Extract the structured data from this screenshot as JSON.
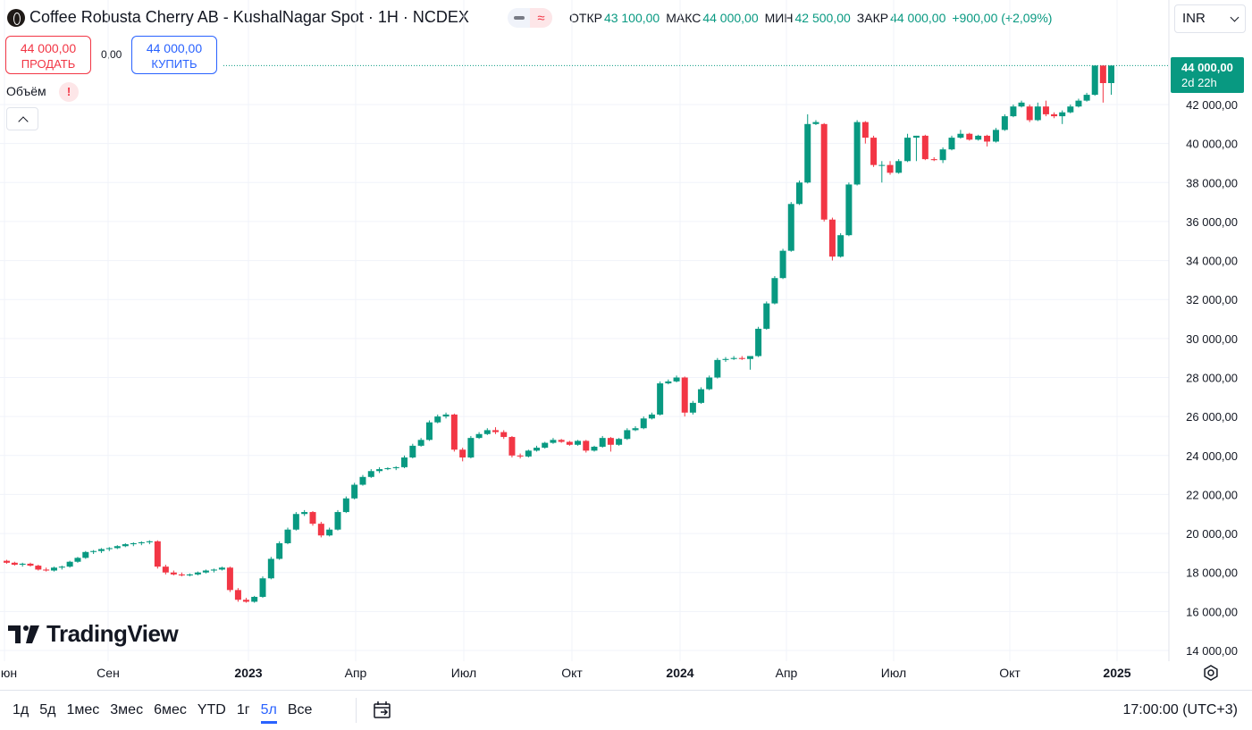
{
  "header": {
    "symbol_title": "Coffee Robusta Cherry AB - KushalNagar Spot · 1H · NCDEX",
    "ohlc": [
      {
        "key": "ОТКР",
        "value": "43 100,00"
      },
      {
        "key": "МАКС",
        "value": "44 000,00"
      },
      {
        "key": "МИН",
        "value": "42 500,00"
      },
      {
        "key": "ЗАКР",
        "value": "44 000,00"
      }
    ],
    "change": "+900,00 (+2,09%)",
    "currency": "INR",
    "pill_icon_left": "minus-icon",
    "pill_icon_right": "wave-approx-icon"
  },
  "trade": {
    "sell_price": "44 000,00",
    "sell_label": "ПРОДАТЬ",
    "spread": "0,00",
    "buy_price": "44 000,00",
    "buy_label": "КУПИТЬ"
  },
  "volume": {
    "label": "Объём",
    "warning": "!"
  },
  "last_price": {
    "value": "44 000,00",
    "countdown": "2d 22h"
  },
  "brand": {
    "name": "TradingView"
  },
  "bottom": {
    "periods": [
      "1д",
      "5д",
      "1мес",
      "3мес",
      "6мес",
      "YTD",
      "1г",
      "5л",
      "Все"
    ],
    "active_period": "5л",
    "clock": "17:00:00 (UTC+3)"
  },
  "colors": {
    "up": "#089981",
    "down": "#f23645",
    "buy": "#2962ff",
    "text": "#131722",
    "grid": "#f0f3fa"
  },
  "chart_data": {
    "type": "candlestick",
    "price_axis": {
      "min": 14000,
      "max": 44000,
      "ticks": [
        14000,
        16000,
        18000,
        20000,
        22000,
        24000,
        26000,
        28000,
        30000,
        32000,
        34000,
        36000,
        38000,
        40000,
        42000
      ],
      "tick_labels": [
        "14 000,00",
        "16 000,00",
        "18 000,00",
        "20 000,00",
        "22 000,00",
        "24 000,00",
        "26 000,00",
        "28 000,00",
        "30 000,00",
        "32 000,00",
        "34 000,00",
        "36 000,00",
        "38 000,00",
        "40 000,00",
        "42 000,00"
      ]
    },
    "time_axis": {
      "labels": [
        "Июн",
        "Сен",
        "2023",
        "Апр",
        "Июл",
        "Окт",
        "2024",
        "Апр",
        "Июл",
        "Окт",
        "2025"
      ],
      "bold": [
        "2023",
        "2024",
        "2025"
      ],
      "dates": [
        "2022-06-01",
        "2022-09-01",
        "2023-01-01",
        "2023-04-01",
        "2023-07-01",
        "2023-10-01",
        "2024-01-01",
        "2024-04-01",
        "2024-07-01",
        "2024-10-01",
        "2025-01-01"
      ]
    },
    "candles": [
      {
        "t": "2022-06-03",
        "o": 18600,
        "h": 18650,
        "l": 18450,
        "c": 18500
      },
      {
        "t": "2022-06-10",
        "o": 18500,
        "h": 18550,
        "l": 18350,
        "c": 18400
      },
      {
        "t": "2022-06-17",
        "o": 18400,
        "h": 18500,
        "l": 18300,
        "c": 18450
      },
      {
        "t": "2022-06-24",
        "o": 18450,
        "h": 18500,
        "l": 18300,
        "c": 18350
      },
      {
        "t": "2022-07-01",
        "o": 18350,
        "h": 18400,
        "l": 18100,
        "c": 18150
      },
      {
        "t": "2022-07-08",
        "o": 18150,
        "h": 18250,
        "l": 18050,
        "c": 18100
      },
      {
        "t": "2022-07-15",
        "o": 18100,
        "h": 18300,
        "l": 18050,
        "c": 18250
      },
      {
        "t": "2022-07-22",
        "o": 18250,
        "h": 18350,
        "l": 18150,
        "c": 18300
      },
      {
        "t": "2022-07-29",
        "o": 18300,
        "h": 18600,
        "l": 18250,
        "c": 18550
      },
      {
        "t": "2022-08-05",
        "o": 18550,
        "h": 18800,
        "l": 18500,
        "c": 18750
      },
      {
        "t": "2022-08-12",
        "o": 18750,
        "h": 19100,
        "l": 18700,
        "c": 19050
      },
      {
        "t": "2022-08-19",
        "o": 19050,
        "h": 19150,
        "l": 18950,
        "c": 19100
      },
      {
        "t": "2022-08-26",
        "o": 19100,
        "h": 19250,
        "l": 19000,
        "c": 19200
      },
      {
        "t": "2022-09-02",
        "o": 19200,
        "h": 19300,
        "l": 19100,
        "c": 19250
      },
      {
        "t": "2022-09-09",
        "o": 19250,
        "h": 19400,
        "l": 19200,
        "c": 19350
      },
      {
        "t": "2022-09-16",
        "o": 19350,
        "h": 19500,
        "l": 19300,
        "c": 19450
      },
      {
        "t": "2022-09-23",
        "o": 19450,
        "h": 19550,
        "l": 19350,
        "c": 19500
      },
      {
        "t": "2022-09-30",
        "o": 19500,
        "h": 19600,
        "l": 19400,
        "c": 19550
      },
      {
        "t": "2022-10-07",
        "o": 19550,
        "h": 19650,
        "l": 19450,
        "c": 19600
      },
      {
        "t": "2022-10-14",
        "o": 19600,
        "h": 19650,
        "l": 18200,
        "c": 18300
      },
      {
        "t": "2022-10-21",
        "o": 18300,
        "h": 18400,
        "l": 17900,
        "c": 18000
      },
      {
        "t": "2022-10-28",
        "o": 18000,
        "h": 18100,
        "l": 17850,
        "c": 17900
      },
      {
        "t": "2022-11-04",
        "o": 17900,
        "h": 18000,
        "l": 17800,
        "c": 17850
      },
      {
        "t": "2022-11-11",
        "o": 17850,
        "h": 17950,
        "l": 17800,
        "c": 17900
      },
      {
        "t": "2022-11-18",
        "o": 17900,
        "h": 18050,
        "l": 17850,
        "c": 18000
      },
      {
        "t": "2022-11-25",
        "o": 18000,
        "h": 18150,
        "l": 17950,
        "c": 18100
      },
      {
        "t": "2022-12-02",
        "o": 18100,
        "h": 18200,
        "l": 18000,
        "c": 18150
      },
      {
        "t": "2022-12-09",
        "o": 18150,
        "h": 18300,
        "l": 18100,
        "c": 18250
      },
      {
        "t": "2022-12-16",
        "o": 18250,
        "h": 18300,
        "l": 17000,
        "c": 17100
      },
      {
        "t": "2022-12-23",
        "o": 17100,
        "h": 17200,
        "l": 16500,
        "c": 16600
      },
      {
        "t": "2022-12-30",
        "o": 16600,
        "h": 16700,
        "l": 16450,
        "c": 16500
      },
      {
        "t": "2023-01-06",
        "o": 16500,
        "h": 16800,
        "l": 16450,
        "c": 16750
      },
      {
        "t": "2023-01-13",
        "o": 16750,
        "h": 17800,
        "l": 16700,
        "c": 17700
      },
      {
        "t": "2023-01-20",
        "o": 17700,
        "h": 18800,
        "l": 17650,
        "c": 18700
      },
      {
        "t": "2023-01-27",
        "o": 18700,
        "h": 19600,
        "l": 18650,
        "c": 19500
      },
      {
        "t": "2023-02-03",
        "o": 19500,
        "h": 20300,
        "l": 19450,
        "c": 20200
      },
      {
        "t": "2023-02-10",
        "o": 20200,
        "h": 21100,
        "l": 20150,
        "c": 21000
      },
      {
        "t": "2023-02-17",
        "o": 21000,
        "h": 21200,
        "l": 20900,
        "c": 21100
      },
      {
        "t": "2023-02-24",
        "o": 21100,
        "h": 21150,
        "l": 20400,
        "c": 20500
      },
      {
        "t": "2023-03-03",
        "o": 20500,
        "h": 20600,
        "l": 19800,
        "c": 19900
      },
      {
        "t": "2023-03-10",
        "o": 19900,
        "h": 20300,
        "l": 19850,
        "c": 20200
      },
      {
        "t": "2023-03-17",
        "o": 20200,
        "h": 21200,
        "l": 20150,
        "c": 21100
      },
      {
        "t": "2023-03-24",
        "o": 21100,
        "h": 21900,
        "l": 21050,
        "c": 21800
      },
      {
        "t": "2023-03-31",
        "o": 21800,
        "h": 22600,
        "l": 21750,
        "c": 22500
      },
      {
        "t": "2023-04-07",
        "o": 22500,
        "h": 23000,
        "l": 22450,
        "c": 22900
      },
      {
        "t": "2023-04-14",
        "o": 22900,
        "h": 23300,
        "l": 22850,
        "c": 23200
      },
      {
        "t": "2023-04-21",
        "o": 23200,
        "h": 23400,
        "l": 23100,
        "c": 23300
      },
      {
        "t": "2023-04-28",
        "o": 23300,
        "h": 23400,
        "l": 23250,
        "c": 23350
      },
      {
        "t": "2023-05-05",
        "o": 23350,
        "h": 23450,
        "l": 23250,
        "c": 23400
      },
      {
        "t": "2023-05-12",
        "o": 23400,
        "h": 24000,
        "l": 23350,
        "c": 23900
      },
      {
        "t": "2023-05-19",
        "o": 23900,
        "h": 24600,
        "l": 23850,
        "c": 24500
      },
      {
        "t": "2023-05-26",
        "o": 24500,
        "h": 24900,
        "l": 24450,
        "c": 24800
      },
      {
        "t": "2023-06-02",
        "o": 24800,
        "h": 25800,
        "l": 24750,
        "c": 25700
      },
      {
        "t": "2023-06-09",
        "o": 25700,
        "h": 26100,
        "l": 25650,
        "c": 26000
      },
      {
        "t": "2023-06-16",
        "o": 26000,
        "h": 26200,
        "l": 25900,
        "c": 26100
      },
      {
        "t": "2023-06-23",
        "o": 26100,
        "h": 26150,
        "l": 24200,
        "c": 24300
      },
      {
        "t": "2023-06-30",
        "o": 24300,
        "h": 24400,
        "l": 23700,
        "c": 23900
      },
      {
        "t": "2023-07-07",
        "o": 23900,
        "h": 25000,
        "l": 23850,
        "c": 24900
      },
      {
        "t": "2023-07-14",
        "o": 24900,
        "h": 25200,
        "l": 24850,
        "c": 25100
      },
      {
        "t": "2023-07-21",
        "o": 25100,
        "h": 25400,
        "l": 25050,
        "c": 25300
      },
      {
        "t": "2023-07-28",
        "o": 25300,
        "h": 25450,
        "l": 25100,
        "c": 25200
      },
      {
        "t": "2023-08-04",
        "o": 25200,
        "h": 25300,
        "l": 24850,
        "c": 24950
      },
      {
        "t": "2023-08-11",
        "o": 24950,
        "h": 25000,
        "l": 23900,
        "c": 24000
      },
      {
        "t": "2023-08-18",
        "o": 24000,
        "h": 24100,
        "l": 23850,
        "c": 23950
      },
      {
        "t": "2023-08-25",
        "o": 23950,
        "h": 24300,
        "l": 23900,
        "c": 24250
      },
      {
        "t": "2023-09-01",
        "o": 24250,
        "h": 24500,
        "l": 24200,
        "c": 24400
      },
      {
        "t": "2023-09-08",
        "o": 24400,
        "h": 24700,
        "l": 24350,
        "c": 24650
      },
      {
        "t": "2023-09-15",
        "o": 24650,
        "h": 24900,
        "l": 24600,
        "c": 24800
      },
      {
        "t": "2023-09-22",
        "o": 24800,
        "h": 24850,
        "l": 24650,
        "c": 24700
      },
      {
        "t": "2023-09-29",
        "o": 24700,
        "h": 24750,
        "l": 24500,
        "c": 24550
      },
      {
        "t": "2023-10-06",
        "o": 24550,
        "h": 24800,
        "l": 24500,
        "c": 24750
      },
      {
        "t": "2023-10-13",
        "o": 24750,
        "h": 24800,
        "l": 24150,
        "c": 24250
      },
      {
        "t": "2023-10-20",
        "o": 24250,
        "h": 24500,
        "l": 24200,
        "c": 24450
      },
      {
        "t": "2023-10-27",
        "o": 24450,
        "h": 25000,
        "l": 24400,
        "c": 24900
      },
      {
        "t": "2023-11-03",
        "o": 24900,
        "h": 24950,
        "l": 24200,
        "c": 24550
      },
      {
        "t": "2023-11-10",
        "o": 24550,
        "h": 24900,
        "l": 24500,
        "c": 24850
      },
      {
        "t": "2023-11-17",
        "o": 24850,
        "h": 25400,
        "l": 24800,
        "c": 25300
      },
      {
        "t": "2023-11-24",
        "o": 25300,
        "h": 25500,
        "l": 25250,
        "c": 25400
      },
      {
        "t": "2023-12-01",
        "o": 25400,
        "h": 26000,
        "l": 25350,
        "c": 25900
      },
      {
        "t": "2023-12-08",
        "o": 25900,
        "h": 26200,
        "l": 25850,
        "c": 26100
      },
      {
        "t": "2023-12-15",
        "o": 26100,
        "h": 27800,
        "l": 26050,
        "c": 27700
      },
      {
        "t": "2023-12-22",
        "o": 27700,
        "h": 27900,
        "l": 27650,
        "c": 27800
      },
      {
        "t": "2023-12-29",
        "o": 27800,
        "h": 28100,
        "l": 27750,
        "c": 28000
      },
      {
        "t": "2024-01-05",
        "o": 28000,
        "h": 28050,
        "l": 26000,
        "c": 26200
      },
      {
        "t": "2024-01-12",
        "o": 26200,
        "h": 26800,
        "l": 26100,
        "c": 26700
      },
      {
        "t": "2024-01-19",
        "o": 26700,
        "h": 27500,
        "l": 26650,
        "c": 27400
      },
      {
        "t": "2024-01-26",
        "o": 27400,
        "h": 28100,
        "l": 27350,
        "c": 28000
      },
      {
        "t": "2024-02-02",
        "o": 28000,
        "h": 29000,
        "l": 27950,
        "c": 28900
      },
      {
        "t": "2024-02-09",
        "o": 28900,
        "h": 29050,
        "l": 28800,
        "c": 28950
      },
      {
        "t": "2024-02-16",
        "o": 28950,
        "h": 29100,
        "l": 28900,
        "c": 29000
      },
      {
        "t": "2024-02-23",
        "o": 29000,
        "h": 29100,
        "l": 28900,
        "c": 28950
      },
      {
        "t": "2024-03-01",
        "o": 28950,
        "h": 29050,
        "l": 28400,
        "c": 29100
      },
      {
        "t": "2024-03-08",
        "o": 29100,
        "h": 30600,
        "l": 29050,
        "c": 30500
      },
      {
        "t": "2024-03-15",
        "o": 30500,
        "h": 31900,
        "l": 30450,
        "c": 31800
      },
      {
        "t": "2024-03-22",
        "o": 31800,
        "h": 33200,
        "l": 31750,
        "c": 33100
      },
      {
        "t": "2024-03-29",
        "o": 33100,
        "h": 34600,
        "l": 33050,
        "c": 34500
      },
      {
        "t": "2024-04-05",
        "o": 34500,
        "h": 37000,
        "l": 34450,
        "c": 36900
      },
      {
        "t": "2024-04-12",
        "o": 36900,
        "h": 38100,
        "l": 36850,
        "c": 38000
      },
      {
        "t": "2024-04-19",
        "o": 38000,
        "h": 41500,
        "l": 37950,
        "c": 41000
      },
      {
        "t": "2024-04-26",
        "o": 41000,
        "h": 41200,
        "l": 40950,
        "c": 41100
      },
      {
        "t": "2024-05-03",
        "o": 41000,
        "h": 41050,
        "l": 36000,
        "c": 36100
      },
      {
        "t": "2024-05-10",
        "o": 36100,
        "h": 36200,
        "l": 34000,
        "c": 34200
      },
      {
        "t": "2024-05-17",
        "o": 34200,
        "h": 35400,
        "l": 34150,
        "c": 35300
      },
      {
        "t": "2024-05-24",
        "o": 35300,
        "h": 38000,
        "l": 35250,
        "c": 37900
      },
      {
        "t": "2024-05-31",
        "o": 37900,
        "h": 41200,
        "l": 37850,
        "c": 41100
      },
      {
        "t": "2024-06-07",
        "o": 41100,
        "h": 41150,
        "l": 40000,
        "c": 40300
      },
      {
        "t": "2024-06-14",
        "o": 40300,
        "h": 40400,
        "l": 38800,
        "c": 38900
      },
      {
        "t": "2024-06-21",
        "o": 38900,
        "h": 39100,
        "l": 38000,
        "c": 38900
      },
      {
        "t": "2024-06-28",
        "o": 38900,
        "h": 39100,
        "l": 38400,
        "c": 38500
      },
      {
        "t": "2024-07-05",
        "o": 38500,
        "h": 39200,
        "l": 38450,
        "c": 39100
      },
      {
        "t": "2024-07-12",
        "o": 39100,
        "h": 40500,
        "l": 39050,
        "c": 40300
      },
      {
        "t": "2024-07-19",
        "o": 40300,
        "h": 40400,
        "l": 39100,
        "c": 40400
      },
      {
        "t": "2024-07-26",
        "o": 40400,
        "h": 40450,
        "l": 39150,
        "c": 39200
      },
      {
        "t": "2024-08-02",
        "o": 39200,
        "h": 39300,
        "l": 39100,
        "c": 39150
      },
      {
        "t": "2024-08-09",
        "o": 39150,
        "h": 39800,
        "l": 39000,
        "c": 39700
      },
      {
        "t": "2024-08-16",
        "o": 39700,
        "h": 40400,
        "l": 39650,
        "c": 40300
      },
      {
        "t": "2024-08-23",
        "o": 40300,
        "h": 40700,
        "l": 40250,
        "c": 40500
      },
      {
        "t": "2024-08-30",
        "o": 40500,
        "h": 40550,
        "l": 40150,
        "c": 40200
      },
      {
        "t": "2024-09-06",
        "o": 40200,
        "h": 40450,
        "l": 40150,
        "c": 40400
      },
      {
        "t": "2024-09-13",
        "o": 40400,
        "h": 40450,
        "l": 39850,
        "c": 40100
      },
      {
        "t": "2024-09-20",
        "o": 40100,
        "h": 40800,
        "l": 40050,
        "c": 40700
      },
      {
        "t": "2024-09-27",
        "o": 40700,
        "h": 41500,
        "l": 40650,
        "c": 41400
      },
      {
        "t": "2024-10-04",
        "o": 41400,
        "h": 42000,
        "l": 41350,
        "c": 41900
      },
      {
        "t": "2024-10-11",
        "o": 41900,
        "h": 42200,
        "l": 41850,
        "c": 42100
      },
      {
        "t": "2024-10-18",
        "o": 41900,
        "h": 42000,
        "l": 41100,
        "c": 41200
      },
      {
        "t": "2024-10-25",
        "o": 41200,
        "h": 42100,
        "l": 41150,
        "c": 41900
      },
      {
        "t": "2024-11-01",
        "o": 41900,
        "h": 42200,
        "l": 41400,
        "c": 41500
      },
      {
        "t": "2024-11-08",
        "o": 41500,
        "h": 41600,
        "l": 41300,
        "c": 41400
      },
      {
        "t": "2024-11-15",
        "o": 41400,
        "h": 41700,
        "l": 41000,
        "c": 41600
      },
      {
        "t": "2024-11-22",
        "o": 41600,
        "h": 42000,
        "l": 41550,
        "c": 41900
      },
      {
        "t": "2024-11-29",
        "o": 41900,
        "h": 42300,
        "l": 41850,
        "c": 42200
      },
      {
        "t": "2024-12-06",
        "o": 42200,
        "h": 42600,
        "l": 42150,
        "c": 42500
      },
      {
        "t": "2024-12-13",
        "o": 42500,
        "h": 44000,
        "l": 42450,
        "c": 44000
      },
      {
        "t": "2024-12-20",
        "o": 44000,
        "h": 44000,
        "l": 42100,
        "c": 43100
      },
      {
        "t": "2024-12-27",
        "o": 43100,
        "h": 44000,
        "l": 42500,
        "c": 44000
      }
    ]
  }
}
